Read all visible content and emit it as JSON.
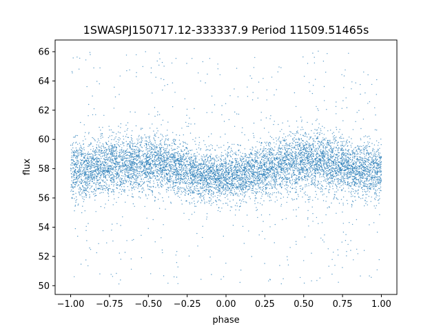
{
  "chart_data": {
    "type": "scatter",
    "title": "1SWASPJ150717.12-333337.9 Period 11509.51465s",
    "xlabel": "phase",
    "ylabel": "flux",
    "xlim": [
      -1.1,
      1.1
    ],
    "ylim": [
      49.4,
      66.8
    ],
    "xticks": [
      -1.0,
      -0.75,
      -0.5,
      -0.25,
      0.0,
      0.25,
      0.5,
      0.75,
      1.0
    ],
    "xtick_labels": [
      "−1.00",
      "−0.75",
      "−0.50",
      "−0.25",
      "0.00",
      "0.25",
      "0.50",
      "0.75",
      "1.00"
    ],
    "yticks": [
      50,
      52,
      54,
      56,
      58,
      60,
      62,
      64,
      66
    ],
    "ytick_labels": [
      "50",
      "52",
      "54",
      "56",
      "58",
      "60",
      "62",
      "64",
      "66"
    ],
    "grid": false,
    "legend": "none",
    "marker_color": "#1f77b4",
    "series": [
      {
        "x": [
          -1.0,
          -0.9,
          -0.8,
          -0.7,
          -0.6,
          -0.5,
          -0.4,
          -0.3,
          -0.2,
          -0.1,
          0.0,
          0.1,
          0.2,
          0.3,
          0.4,
          0.5,
          0.6,
          0.7,
          0.8,
          0.9,
          1.0
        ],
        "y": [
          57.8,
          58.0,
          58.2,
          58.3,
          58.4,
          58.5,
          58.3,
          58.0,
          57.7,
          57.5,
          57.4,
          57.5,
          57.8,
          58.2,
          58.4,
          58.5,
          58.5,
          58.3,
          58.1,
          57.9,
          57.8
        ],
        "spread": [
          2.2,
          2.1,
          2.1,
          2.0,
          2.1,
          2.2,
          2.1,
          2.0,
          1.9,
          1.9,
          1.8,
          1.9,
          2.0,
          2.1,
          2.2,
          2.3,
          2.2,
          2.2,
          2.1,
          2.1,
          2.2
        ],
        "ymin": 50.1,
        "ymax": 66.1
      }
    ]
  }
}
